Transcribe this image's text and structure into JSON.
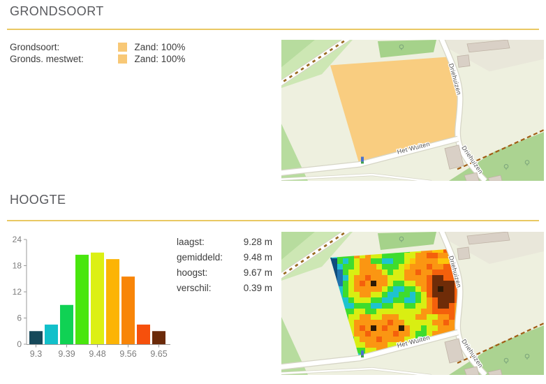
{
  "sections": {
    "grondsoort": {
      "title": "GRONDSOORT",
      "legend": [
        {
          "label": "Grondsoort:",
          "swatch_color": "#f8c876",
          "value": "Zand: 100%"
        },
        {
          "label": "Gronds. mestwet:",
          "swatch_color": "#f8c876",
          "value": "Zand: 100%"
        }
      ]
    },
    "hoogte": {
      "title": "HOOGTE",
      "stats": [
        {
          "label": "laagst:",
          "value": "9.28 m"
        },
        {
          "label": "gemiddeld:",
          "value": "9.48 m"
        },
        {
          "label": "hoogst:",
          "value": "9.67 m"
        },
        {
          "label": "verschil:",
          "value": "0.39 m"
        }
      ]
    }
  },
  "chart_data": {
    "type": "bar",
    "title": "",
    "xlabel": "",
    "ylabel": "",
    "grid": false,
    "ylim": [
      0,
      24
    ],
    "y_ticks": [
      0,
      6,
      12,
      18,
      24
    ],
    "values": [
      3,
      4.5,
      9,
      20.5,
      21,
      19.5,
      15.5,
      4.5,
      3
    ],
    "bar_colors": [
      "#16495a",
      "#12c0ca",
      "#10d254",
      "#49e60e",
      "#dcf014",
      "#fcb405",
      "#f88508",
      "#f6500c",
      "#6b2a09"
    ],
    "x_ticks": [
      {
        "label": "9.3",
        "bar": 0
      },
      {
        "label": "9.39",
        "bar": 2
      },
      {
        "label": "9.48",
        "bar": 4
      },
      {
        "label": "9.56",
        "bar": 6
      },
      {
        "label": "9.65",
        "bar": 8
      }
    ]
  },
  "maps": {
    "road_labels": [
      "Driehuizen",
      "Driehuizen",
      "Het Wuiten"
    ],
    "field_fill": "#f9cd80",
    "colors": {
      "bg": "#eef0df",
      "green_light": "#cde7b4",
      "green_mid": "#b7dc9e",
      "green_dark": "#a5d28a",
      "forest": "#abd391",
      "yard": "#e9e7da",
      "building": "#d9d0c6",
      "building_stroke": "#bfb3a5",
      "road": "#ffffff",
      "road_casing": "#d6d5c6",
      "path_brown": "#a05c14",
      "tree": "#7aa37a",
      "label": "#4e4e4e",
      "marker_blue": "#4a72cc"
    },
    "heatmap": {
      "palette": {
        "0": "#0f4d7d",
        "1": "#2173ae",
        "2": "#1ec3cf",
        "4": "#3edc2e",
        "5": "#7be62a",
        "6": "#d9ee12",
        "7": "#fcc60a",
        "8": "#fb9612",
        "9": "#f4600c",
        "A": "#6f2c08",
        "B": "#2e1a06"
      },
      "rows": [
        "442544488664444668877988",
        "024448686644446688998877",
        "004246884422446788887788",
        "002446888644467888988998",
        "001466888864668898899999",
        "0012688988866688889AA999",
        "00146898B8864466889AAAA9",
        "0024688888642244689ABAA9",
        "0124668866422442469AAAA9",
        "00224666442244224689AAA9",
        "01122444224466446689AA98",
        "102446644666666668899998",
        "012466886688866688668898",
        "002468888889886666688988",
        "10246898B8988B8664668888",
        "012468898888988644688888",
        "001246888988886642468888",
        "101246688886664422446688",
        "001224466886442244668888",
        "100122446664422446688888"
      ]
    }
  },
  "divider_color": "#e9c863",
  "text_colors": {
    "title": "#595a5e",
    "body": "#3c3c3c",
    "axis": "#7d7d7d"
  }
}
